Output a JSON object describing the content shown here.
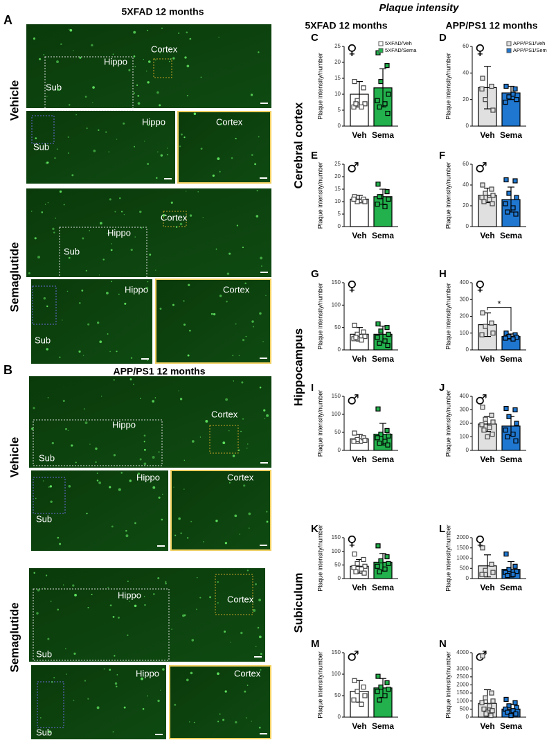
{
  "header": {
    "title": "Plaque intensity",
    "col1": "5XFAD 12 months",
    "col2": "APP/PS1 12 months",
    "rows": [
      "Cerebral cortex",
      "Hippocampus",
      "Subiculum"
    ]
  },
  "panel_a": {
    "letter": "A",
    "title": "5XFAD 12 months",
    "vehicle": "Vehicle",
    "sema": "Semaglutide",
    "sub": "Sub",
    "hippo": "Hippo",
    "cortex": "Cortex"
  },
  "panel_b": {
    "letter": "B",
    "title": "APP/PS1 12 months",
    "vehicle": "Vehicle",
    "sema": "Semaglutide",
    "sub": "Sub",
    "hippo": "Hippo",
    "cortex": "Cortex"
  },
  "chart_data": [
    {
      "type": "bar",
      "title": "C",
      "symbol": "♀",
      "ylabel": "Plaque intensity/number",
      "categories": [
        "Veh",
        "Sema"
      ],
      "colors": [
        "#ffffff",
        "#22b14c"
      ],
      "label_colors": [
        "#000000",
        "#22b14c"
      ],
      "legend": [
        "5XFAD/Veh",
        "5XFAD/Sema"
      ],
      "values": [
        10,
        12
      ],
      "errors": [
        4,
        6
      ],
      "points": [
        [
          14,
          12,
          8,
          7,
          6,
          6,
          7
        ],
        [
          23,
          19,
          14,
          10,
          8,
          7,
          6,
          4
        ]
      ],
      "ylim": [
        0,
        25
      ],
      "yticks": [
        0,
        5,
        10,
        15,
        20,
        25
      ]
    },
    {
      "type": "bar",
      "title": "D",
      "symbol": "♀",
      "ylabel": "Plaque intensity/number",
      "categories": [
        "Veh",
        "Sema"
      ],
      "colors": [
        "#e0e0e0",
        "#1f77d0"
      ],
      "label_colors": [
        "#000000",
        "#1f77d0"
      ],
      "legend": [
        "APP/PS1/Veh",
        "APP/PS1/Sema"
      ],
      "values": [
        29,
        25
      ],
      "errors": [
        16,
        5
      ],
      "points": [
        [
          36,
          30,
          20,
          12,
          28
        ],
        [
          30,
          28,
          22,
          20,
          18,
          24
        ]
      ],
      "ylim": [
        0,
        60
      ],
      "yticks": [
        0,
        20,
        40,
        60
      ]
    },
    {
      "type": "bar",
      "title": "E",
      "symbol": "♂",
      "ylabel": "Plaque intensity/number",
      "categories": [
        "Veh",
        "Sema"
      ],
      "colors": [
        "#ffffff",
        "#22b14c"
      ],
      "label_colors": [
        "#000000",
        "#22b14c"
      ],
      "values": [
        11,
        12
      ],
      "errors": [
        1.5,
        3
      ],
      "points": [
        [
          12,
          11,
          10,
          10,
          11
        ],
        [
          17,
          14,
          12,
          11,
          9,
          8,
          12
        ]
      ],
      "ylim": [
        0,
        25
      ],
      "yticks": [
        0,
        5,
        10,
        15,
        20,
        25
      ]
    },
    {
      "type": "bar",
      "title": "F",
      "symbol": "♂",
      "ylabel": "Plaque intensity/number",
      "categories": [
        "Veh",
        "Sema"
      ],
      "colors": [
        "#e0e0e0",
        "#1f77d0"
      ],
      "label_colors": [
        "#000000",
        "#1f77d0"
      ],
      "values": [
        30,
        26
      ],
      "errors": [
        7,
        12
      ],
      "points": [
        [
          40,
          36,
          32,
          30,
          28,
          26,
          24,
          22
        ],
        [
          45,
          44,
          32,
          28,
          22,
          18,
          14,
          12
        ]
      ],
      "ylim": [
        0,
        60
      ],
      "yticks": [
        0,
        20,
        40,
        60
      ]
    },
    {
      "type": "bar",
      "title": "G",
      "symbol": "♀",
      "ylabel": "Plaque intensity/number",
      "categories": [
        "Veh",
        "Sema"
      ],
      "colors": [
        "#ffffff",
        "#22b14c"
      ],
      "label_colors": [
        "#000000",
        "#22b14c"
      ],
      "values": [
        35,
        35
      ],
      "errors": [
        15,
        18
      ],
      "points": [
        [
          55,
          40,
          35,
          30,
          25,
          22,
          28
        ],
        [
          58,
          50,
          42,
          35,
          28,
          20,
          15,
          10
        ]
      ],
      "ylim": [
        0,
        150
      ],
      "yticks": [
        0,
        50,
        100,
        150
      ]
    },
    {
      "type": "bar",
      "title": "H",
      "symbol": "♀",
      "ylabel": "Plaque intensity/number",
      "categories": [
        "Veh",
        "Sema"
      ],
      "colors": [
        "#e0e0e0",
        "#1f77d0"
      ],
      "label_colors": [
        "#000000",
        "#1f77d0"
      ],
      "annotation": "*",
      "values": [
        150,
        80
      ],
      "errors": [
        70,
        15
      ],
      "points": [
        [
          220,
          160,
          140,
          100,
          90
        ],
        [
          100,
          90,
          80,
          75,
          70,
          65
        ]
      ],
      "ylim": [
        0,
        400
      ],
      "yticks": [
        0,
        100,
        200,
        300,
        400
      ]
    },
    {
      "type": "bar",
      "title": "I",
      "symbol": "♂",
      "ylabel": "Plaque intensity/number",
      "categories": [
        "Veh",
        "Sema"
      ],
      "colors": [
        "#ffffff",
        "#22b14c"
      ],
      "label_colors": [
        "#000000",
        "#22b14c"
      ],
      "values": [
        32,
        45
      ],
      "errors": [
        12,
        30
      ],
      "points": [
        [
          48,
          35,
          30,
          28,
          25
        ],
        [
          115,
          55,
          45,
          40,
          35,
          25,
          20,
          15
        ]
      ],
      "ylim": [
        0,
        150
      ],
      "yticks": [
        0,
        50,
        100,
        150
      ]
    },
    {
      "type": "bar",
      "title": "J",
      "symbol": "♂",
      "ylabel": "Plaque intensity/number",
      "categories": [
        "Veh",
        "Sema"
      ],
      "colors": [
        "#e0e0e0",
        "#1f77d0"
      ],
      "label_colors": [
        "#000000",
        "#1f77d0"
      ],
      "values": [
        195,
        180
      ],
      "errors": [
        55,
        70
      ],
      "points": [
        [
          320,
          260,
          230,
          210,
          190,
          170,
          150,
          120,
          100
        ],
        [
          310,
          300,
          250,
          200,
          150,
          120,
          100,
          70
        ]
      ],
      "ylim": [
        0,
        400
      ],
      "yticks": [
        0,
        100,
        200,
        300,
        400
      ]
    },
    {
      "type": "bar",
      "title": "K",
      "symbol": "♀",
      "ylabel": "Plaque intensity/number",
      "categories": [
        "Veh",
        "Sema"
      ],
      "colors": [
        "#ffffff",
        "#22b14c"
      ],
      "label_colors": [
        "#000000",
        "#22b14c"
      ],
      "values": [
        45,
        60
      ],
      "errors": [
        25,
        32
      ],
      "points": [
        [
          90,
          70,
          55,
          45,
          40,
          35,
          25,
          20
        ],
        [
          120,
          80,
          65,
          55,
          45,
          35,
          25
        ]
      ],
      "ylim": [
        0,
        150
      ],
      "yticks": [
        0,
        50,
        100,
        150
      ]
    },
    {
      "type": "bar",
      "title": "L",
      "symbol": "♀",
      "ylabel": "Plaque intensity/number",
      "categories": [
        "Veh",
        "Sema"
      ],
      "colors": [
        "#e0e0e0",
        "#1f77d0"
      ],
      "label_colors": [
        "#000000",
        "#1f77d0"
      ],
      "values": [
        620,
        450
      ],
      "errors": [
        540,
        380
      ],
      "points": [
        [
          1500,
          700,
          400,
          300,
          200
        ],
        [
          1200,
          600,
          450,
          350,
          300,
          200,
          150
        ]
      ],
      "ylim": [
        0,
        2000
      ],
      "yticks": [
        0,
        500,
        1000,
        1500,
        2000
      ]
    },
    {
      "type": "bar",
      "title": "M",
      "symbol": "♂",
      "ylabel": "Plaque intensity/number",
      "categories": [
        "Veh",
        "Sema"
      ],
      "colors": [
        "#ffffff",
        "#22b14c"
      ],
      "label_colors": [
        "#000000",
        "#22b14c"
      ],
      "values": [
        60,
        68
      ],
      "errors": [
        25,
        22
      ],
      "points": [
        [
          85,
          70,
          60,
          50,
          40,
          30
        ],
        [
          95,
          80,
          70,
          65,
          60,
          50,
          40
        ]
      ],
      "ylim": [
        0,
        150
      ],
      "yticks": [
        0,
        50,
        100,
        150
      ]
    },
    {
      "type": "bar",
      "title": "N",
      "symbol": "♂",
      "ylabel": "Plaque intensity/number",
      "categories": [
        "Veh",
        "Sema"
      ],
      "colors": [
        "#e0e0e0",
        "#1f77d0"
      ],
      "label_colors": [
        "#000000",
        "#1f77d0"
      ],
      "values": [
        850,
        500
      ],
      "errors": [
        850,
        300
      ],
      "points": [
        [
          3800,
          1500,
          1200,
          1000,
          900,
          700,
          500,
          400,
          300,
          200,
          100
        ],
        [
          1100,
          900,
          700,
          600,
          500,
          400,
          300,
          200,
          100
        ]
      ],
      "ylim": [
        0,
        4000
      ],
      "yticks": [
        0,
        500,
        1000,
        1500,
        2000,
        2500,
        3000,
        4000
      ]
    }
  ]
}
